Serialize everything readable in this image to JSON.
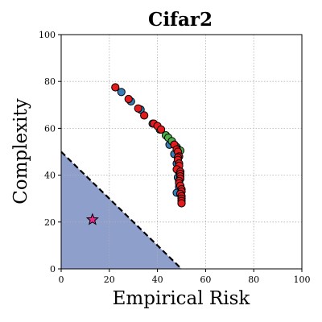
{
  "chart_data": {
    "type": "scatter",
    "title": "Cifar2",
    "xlabel": "Empirical Risk",
    "ylabel": "Complexity",
    "xlim": [
      0,
      100
    ],
    "ylim": [
      0,
      100
    ],
    "xticks": [
      0,
      20,
      40,
      60,
      80,
      100
    ],
    "yticks": [
      0,
      20,
      40,
      60,
      80,
      100
    ],
    "xtick_labels": [
      "0",
      "20",
      "40",
      "60",
      "80",
      "100"
    ],
    "ytick_labels": [
      "0",
      "20",
      "40",
      "60",
      "80",
      "100"
    ],
    "grid": true,
    "grid_style": "dotted",
    "region": {
      "polygon": [
        [
          0,
          50
        ],
        [
          50,
          0
        ],
        [
          0,
          0
        ]
      ],
      "fill": "#8e9fcc",
      "boundary_color": "#000000",
      "boundary_style": "dashed"
    },
    "star": {
      "x": 13,
      "y": 21,
      "color": "#e7298a"
    },
    "series": [
      {
        "color": "#377eb8",
        "points": [
          [
            25,
            75.5
          ],
          [
            29,
            71.5
          ],
          [
            33,
            68
          ],
          [
            38,
            62
          ],
          [
            45,
            53
          ],
          [
            47,
            49
          ],
          [
            48,
            45
          ],
          [
            48.5,
            42
          ],
          [
            48.5,
            39
          ],
          [
            49,
            35
          ],
          [
            48,
            32.5
          ]
        ]
      },
      {
        "color": "#4daf4a",
        "points": [
          [
            41,
            59.5
          ],
          [
            43.5,
            57
          ],
          [
            44.5,
            56
          ],
          [
            46,
            54.5
          ],
          [
            47,
            53
          ],
          [
            48,
            52
          ],
          [
            48.5,
            51
          ],
          [
            49.5,
            50.5
          ]
        ]
      },
      {
        "color": "#e41a1c",
        "points": [
          [
            22.5,
            77.5
          ],
          [
            28,
            72.5
          ],
          [
            32,
            68.5
          ],
          [
            34.5,
            65.5
          ],
          [
            38.5,
            62
          ],
          [
            40,
            61
          ],
          [
            41.5,
            59.5
          ],
          [
            47,
            53
          ],
          [
            48,
            51
          ],
          [
            48.5,
            50
          ],
          [
            49,
            48
          ],
          [
            48.5,
            47.5
          ],
          [
            48.5,
            46.5
          ],
          [
            49,
            45
          ],
          [
            49,
            44
          ],
          [
            48,
            42.5
          ],
          [
            49.5,
            41.5
          ],
          [
            49.5,
            40.5
          ],
          [
            49.5,
            39.5
          ],
          [
            49.5,
            38.5
          ],
          [
            49,
            37.5
          ],
          [
            49,
            36.5
          ],
          [
            49.5,
            35.5
          ],
          [
            50,
            34
          ],
          [
            50,
            33
          ],
          [
            49.5,
            32
          ],
          [
            50,
            31
          ],
          [
            50,
            30
          ],
          [
            50,
            29
          ],
          [
            50,
            28
          ]
        ]
      }
    ]
  }
}
